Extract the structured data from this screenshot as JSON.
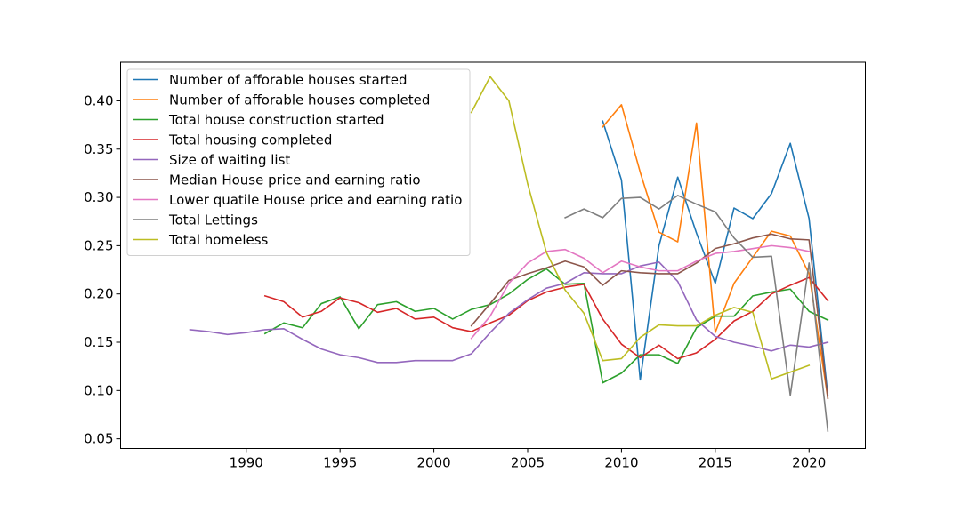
{
  "chart_data": {
    "type": "line",
    "title": "",
    "xlabel": "",
    "ylabel": "",
    "xlim": [
      1983.3,
      2023.0
    ],
    "ylim": [
      0.04,
      0.44
    ],
    "xticks": [
      1990,
      1995,
      2000,
      2005,
      2010,
      2015,
      2020
    ],
    "yticks": [
      0.05,
      0.1,
      0.15,
      0.2,
      0.25,
      0.3,
      0.35,
      0.4
    ],
    "grid": false,
    "legend_position": "top-left",
    "series": [
      {
        "name": "Number of afforable houses started",
        "color": "#1f77b4",
        "points": [
          [
            2009,
            0.379
          ],
          [
            2010,
            0.318
          ],
          [
            2011,
            0.111
          ],
          [
            2012,
            0.25
          ],
          [
            2013,
            0.321
          ],
          [
            2014,
            0.263
          ],
          [
            2015,
            0.211
          ],
          [
            2016,
            0.289
          ],
          [
            2017,
            0.278
          ],
          [
            2018,
            0.304
          ],
          [
            2019,
            0.356
          ],
          [
            2020,
            0.278
          ],
          [
            2021,
            0.095
          ]
        ]
      },
      {
        "name": "Number of afforable houses completed",
        "color": "#ff7f0e",
        "points": [
          [
            2009,
            0.373
          ],
          [
            2010,
            0.396
          ],
          [
            2011,
            0.326
          ],
          [
            2012,
            0.264
          ],
          [
            2013,
            0.254
          ],
          [
            2014,
            0.377
          ],
          [
            2015,
            0.16
          ],
          [
            2016,
            0.211
          ],
          [
            2017,
            0.238
          ],
          [
            2018,
            0.265
          ],
          [
            2019,
            0.26
          ],
          [
            2020,
            0.221
          ],
          [
            2021,
            0.092
          ]
        ]
      },
      {
        "name": "Total house construction started",
        "color": "#2ca02c",
        "points": [
          [
            1991,
            0.159
          ],
          [
            1992,
            0.17
          ],
          [
            1993,
            0.165
          ],
          [
            1994,
            0.19
          ],
          [
            1995,
            0.197
          ],
          [
            1996,
            0.164
          ],
          [
            1997,
            0.189
          ],
          [
            1998,
            0.192
          ],
          [
            1999,
            0.182
          ],
          [
            2000,
            0.185
          ],
          [
            2001,
            0.174
          ],
          [
            2002,
            0.184
          ],
          [
            2003,
            0.189
          ],
          [
            2004,
            0.2
          ],
          [
            2005,
            0.215
          ],
          [
            2006,
            0.226
          ],
          [
            2007,
            0.21
          ],
          [
            2008,
            0.211
          ],
          [
            2009,
            0.108
          ],
          [
            2010,
            0.118
          ],
          [
            2011,
            0.137
          ],
          [
            2012,
            0.137
          ],
          [
            2013,
            0.128
          ],
          [
            2014,
            0.165
          ],
          [
            2015,
            0.177
          ],
          [
            2016,
            0.177
          ],
          [
            2017,
            0.198
          ],
          [
            2018,
            0.202
          ],
          [
            2019,
            0.205
          ],
          [
            2020,
            0.182
          ],
          [
            2021,
            0.173
          ]
        ]
      },
      {
        "name": "Total housing completed",
        "color": "#d62728",
        "points": [
          [
            1991,
            0.198
          ],
          [
            1992,
            0.192
          ],
          [
            1993,
            0.176
          ],
          [
            1994,
            0.182
          ],
          [
            1995,
            0.196
          ],
          [
            1996,
            0.191
          ],
          [
            1997,
            0.181
          ],
          [
            1998,
            0.185
          ],
          [
            1999,
            0.174
          ],
          [
            2000,
            0.176
          ],
          [
            2001,
            0.165
          ],
          [
            2002,
            0.161
          ],
          [
            2003,
            0.17
          ],
          [
            2004,
            0.178
          ],
          [
            2005,
            0.193
          ],
          [
            2006,
            0.202
          ],
          [
            2007,
            0.207
          ],
          [
            2008,
            0.21
          ],
          [
            2009,
            0.174
          ],
          [
            2010,
            0.148
          ],
          [
            2011,
            0.134
          ],
          [
            2012,
            0.147
          ],
          [
            2013,
            0.133
          ],
          [
            2014,
            0.139
          ],
          [
            2015,
            0.153
          ],
          [
            2016,
            0.172
          ],
          [
            2017,
            0.182
          ],
          [
            2018,
            0.2
          ],
          [
            2019,
            0.209
          ],
          [
            2020,
            0.217
          ],
          [
            2021,
            0.193
          ]
        ]
      },
      {
        "name": "Size of waiting list",
        "color": "#9467bd",
        "points": [
          [
            1987,
            0.163
          ],
          [
            1988,
            0.161
          ],
          [
            1989,
            0.158
          ],
          [
            1990,
            0.16
          ],
          [
            1991,
            0.163
          ],
          [
            1992,
            0.164
          ],
          [
            1993,
            0.153
          ],
          [
            1994,
            0.143
          ],
          [
            1995,
            0.137
          ],
          [
            1996,
            0.134
          ],
          [
            1997,
            0.129
          ],
          [
            1998,
            0.129
          ],
          [
            1999,
            0.131
          ],
          [
            2000,
            0.131
          ],
          [
            2001,
            0.131
          ],
          [
            2002,
            0.138
          ],
          [
            2003,
            0.16
          ],
          [
            2004,
            0.18
          ],
          [
            2005,
            0.194
          ],
          [
            2006,
            0.206
          ],
          [
            2007,
            0.211
          ],
          [
            2008,
            0.222
          ],
          [
            2009,
            0.221
          ],
          [
            2010,
            0.221
          ],
          [
            2011,
            0.229
          ],
          [
            2012,
            0.233
          ],
          [
            2013,
            0.213
          ],
          [
            2014,
            0.173
          ],
          [
            2015,
            0.156
          ],
          [
            2016,
            0.15
          ],
          [
            2017,
            0.146
          ],
          [
            2018,
            0.141
          ],
          [
            2019,
            0.147
          ],
          [
            2020,
            0.145
          ],
          [
            2021,
            0.15
          ]
        ]
      },
      {
        "name": "Median House price and earning ratio",
        "color": "#8c564b",
        "points": [
          [
            2002,
            0.167
          ],
          [
            2003,
            0.19
          ],
          [
            2004,
            0.214
          ],
          [
            2005,
            0.221
          ],
          [
            2006,
            0.227
          ],
          [
            2007,
            0.234
          ],
          [
            2008,
            0.228
          ],
          [
            2009,
            0.209
          ],
          [
            2010,
            0.224
          ],
          [
            2011,
            0.222
          ],
          [
            2012,
            0.221
          ],
          [
            2013,
            0.221
          ],
          [
            2014,
            0.232
          ],
          [
            2015,
            0.247
          ],
          [
            2016,
            0.252
          ],
          [
            2017,
            0.258
          ],
          [
            2018,
            0.262
          ],
          [
            2019,
            0.257
          ],
          [
            2020,
            0.256
          ],
          [
            2021,
            0.092
          ]
        ]
      },
      {
        "name": "Lower quatile House price and earning ratio",
        "color": "#e377c2",
        "points": [
          [
            2002,
            0.154
          ],
          [
            2003,
            0.177
          ],
          [
            2004,
            0.211
          ],
          [
            2005,
            0.232
          ],
          [
            2006,
            0.244
          ],
          [
            2007,
            0.246
          ],
          [
            2008,
            0.237
          ],
          [
            2009,
            0.222
          ],
          [
            2010,
            0.234
          ],
          [
            2011,
            0.228
          ],
          [
            2012,
            0.224
          ],
          [
            2013,
            0.224
          ],
          [
            2014,
            0.234
          ],
          [
            2015,
            0.242
          ],
          [
            2016,
            0.244
          ],
          [
            2017,
            0.247
          ],
          [
            2018,
            0.25
          ],
          [
            2019,
            0.248
          ],
          [
            2020,
            0.244
          ]
        ]
      },
      {
        "name": "Total Lettings",
        "color": "#7f7f7f",
        "points": [
          [
            2007,
            0.279
          ],
          [
            2008,
            0.288
          ],
          [
            2009,
            0.279
          ],
          [
            2010,
            0.299
          ],
          [
            2011,
            0.3
          ],
          [
            2012,
            0.288
          ],
          [
            2013,
            0.302
          ],
          [
            2014,
            0.293
          ],
          [
            2015,
            0.285
          ],
          [
            2016,
            0.258
          ],
          [
            2017,
            0.238
          ],
          [
            2018,
            0.239
          ],
          [
            2019,
            0.095
          ],
          [
            2020,
            0.232
          ],
          [
            2021,
            0.058
          ]
        ]
      },
      {
        "name": "Total homeless",
        "color": "#bcbd22",
        "points": [
          [
            2002,
            0.388
          ],
          [
            2003,
            0.425
          ],
          [
            2004,
            0.4
          ],
          [
            2005,
            0.314
          ],
          [
            2006,
            0.243
          ],
          [
            2007,
            0.204
          ],
          [
            2008,
            0.18
          ],
          [
            2009,
            0.131
          ],
          [
            2010,
            0.133
          ],
          [
            2011,
            0.155
          ],
          [
            2012,
            0.168
          ],
          [
            2013,
            0.167
          ],
          [
            2014,
            0.167
          ],
          [
            2015,
            0.178
          ],
          [
            2016,
            0.186
          ],
          [
            2017,
            0.181
          ],
          [
            2018,
            0.112
          ],
          [
            2019,
            0.119
          ],
          [
            2020,
            0.126
          ]
        ]
      }
    ]
  }
}
